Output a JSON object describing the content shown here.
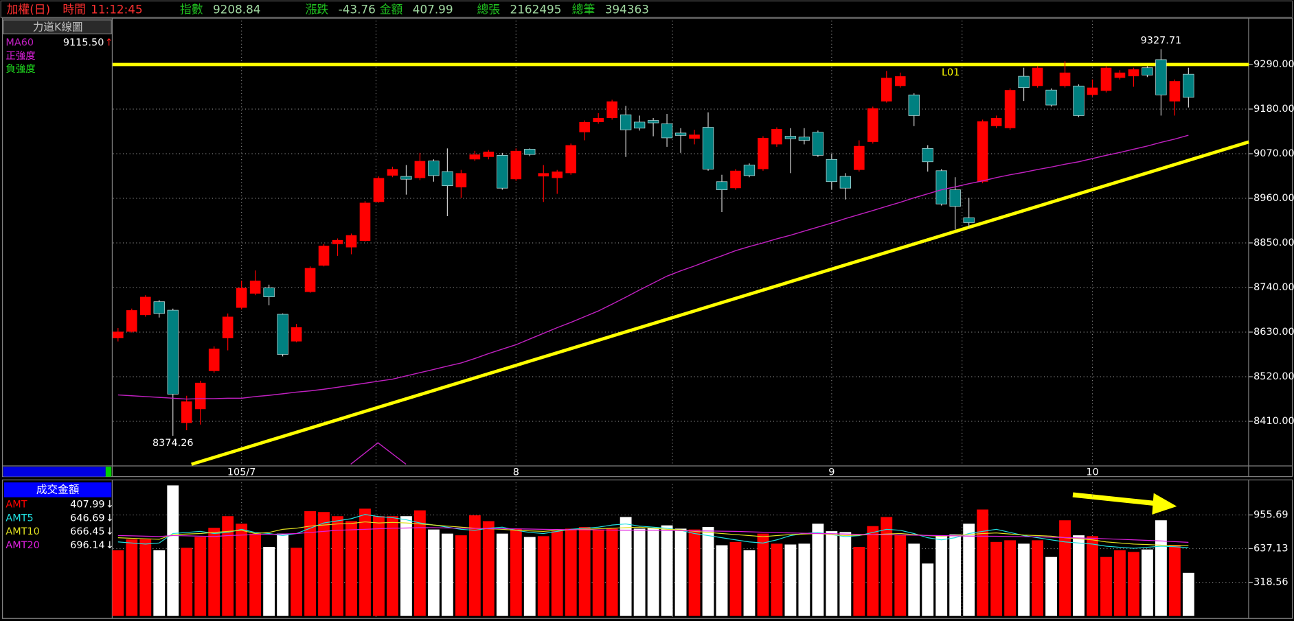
{
  "header": {
    "title": "加權(日)",
    "time_label": "時間",
    "time": "11:12:45",
    "fields": [
      {
        "label": "指數",
        "value": "9208.84"
      },
      {
        "label": "漲跌",
        "value": "-43.76"
      },
      {
        "label": "金額",
        "value": "407.99"
      },
      {
        "label": "總張",
        "value": "2162495"
      },
      {
        "label": "總筆",
        "value": "394363"
      }
    ]
  },
  "chart_data": [
    {
      "type": "candlestick",
      "title": "力道K線圖",
      "open": [
        8615,
        8631,
        8672,
        8705,
        8684,
        8406,
        8440,
        8534,
        8615,
        8690,
        8725,
        8739,
        8674,
        8607,
        8729,
        8794,
        8847,
        8839,
        8855,
        8951,
        9016,
        9014,
        9010,
        9052,
        9026,
        8987,
        9056,
        9062,
        9066,
        9007,
        9081,
        9014,
        9010,
        9022,
        9123,
        9148,
        9158,
        9166,
        9148,
        9152,
        9144,
        9121,
        9107,
        9135,
        9001,
        8985,
        9042,
        9032,
        9093,
        9113,
        9111,
        9123,
        9056,
        9014,
        9030,
        9099,
        9199,
        9237,
        9215,
        9083,
        9028,
        8981,
        8912,
        9001,
        9138,
        9133,
        9261,
        9237,
        9227,
        9237,
        9237,
        9215,
        9225,
        9257,
        9261,
        9282,
        9302,
        9199,
        9266
      ],
      "high": [
        8640,
        8688,
        8721,
        8709,
        8688,
        8473,
        8510,
        8595,
        8676,
        8757,
        8782,
        8747,
        8676,
        8650,
        8792,
        8847,
        8861,
        8873,
        8953,
        9014,
        9038,
        9042,
        9072,
        9056,
        9083,
        9030,
        9077,
        9079,
        9072,
        9083,
        9083,
        9042,
        9030,
        9095,
        9152,
        9170,
        9203,
        9188,
        9164,
        9158,
        9168,
        9133,
        9129,
        9172,
        9018,
        9032,
        9046,
        9113,
        9135,
        9133,
        9133,
        9127,
        9070,
        9022,
        9103,
        9186,
        9274,
        9270,
        9219,
        9091,
        9032,
        9012,
        8961,
        9154,
        9164,
        9231,
        9282,
        9286,
        9231,
        9298,
        9241,
        9253,
        9286,
        9276,
        9282,
        9286,
        9327.71,
        9253,
        9282
      ],
      "low": [
        8607,
        8629,
        8668,
        8666,
        8374.26,
        8388,
        8402,
        8530,
        8585,
        8686,
        8721,
        8696,
        8570,
        8605,
        8727,
        8792,
        8818,
        8822,
        8853,
        8949,
        9012,
        8969,
        9005,
        9001,
        8916,
        8961,
        9052,
        9056,
        8981,
        9003,
        9064,
        8951,
        8971,
        9018,
        9103,
        9144,
        9154,
        9062,
        9127,
        9113,
        9087,
        9072,
        9093,
        9028,
        8926,
        8981,
        9012,
        9028,
        9087,
        9022,
        9093,
        9062,
        8981,
        8957,
        9026,
        9095,
        9196,
        9233,
        9138,
        9026,
        8942,
        8883,
        8888,
        8997,
        9133,
        9129,
        9200,
        9233,
        9186,
        9233,
        9160,
        9211,
        9221,
        9253,
        9235,
        9259,
        9164,
        9164,
        9184
      ],
      "close": [
        8631,
        8684,
        8717,
        8676,
        8477,
        8459,
        8505,
        8589,
        8668,
        8739,
        8757,
        8717,
        8575,
        8642,
        8788,
        8843,
        8857,
        8869,
        8949,
        9010,
        9032,
        9007,
        9052,
        9016,
        8991,
        9022,
        9068,
        9075,
        8985,
        9077,
        9068,
        9022,
        9026,
        9091,
        9148,
        9158,
        9199,
        9129,
        9133,
        9146,
        9109,
        9115,
        9117,
        9032,
        8981,
        9028,
        9016,
        9109,
        9131,
        9107,
        9103,
        9066,
        9001,
        8985,
        9089,
        9182,
        9257,
        9261,
        9164,
        9050,
        8946,
        8940,
        8900,
        9150,
        9158,
        9227,
        9233,
        9282,
        9190,
        9270,
        9164,
        9233,
        9282,
        9270,
        9278,
        9264,
        9215,
        9249,
        9209
      ],
      "up_color": "#ff0000",
      "down_color": "#008080",
      "series": [
        {
          "name": "MA60",
          "color": "#c020c0",
          "legend_value": "9115.50",
          "trend": "↑",
          "values": [
            8475,
            8473,
            8471,
            8469,
            8467,
            8465,
            8466,
            8466,
            8467,
            8467,
            8471,
            8474,
            8478,
            8482,
            8485,
            8489,
            8494,
            8499,
            8504,
            8509,
            8514,
            8522,
            8530,
            8538,
            8546,
            8554,
            8565,
            8577,
            8588,
            8599,
            8613,
            8627,
            8641,
            8654,
            8668,
            8682,
            8699,
            8716,
            8734,
            8751,
            8768,
            8781,
            8793,
            8806,
            8818,
            8831,
            8841,
            8850,
            8860,
            8869,
            8879,
            8889,
            8899,
            8910,
            8920,
            8930,
            8940,
            8950,
            8961,
            8971,
            8981,
            8988,
            8996,
            9003,
            9011,
            9018,
            9024,
            9031,
            9037,
            9044,
            9050,
            9058,
            9066,
            9073,
            9081,
            9089,
            9098,
            9106,
            9115.5
          ]
        }
      ],
      "legend_extra": [
        {
          "name": "正強度",
          "color": "#e020e0"
        },
        {
          "name": "負強度",
          "color": "#20e020"
        }
      ],
      "ylim": [
        8300,
        9398
      ],
      "yticks": [
        {
          "value": 9290,
          "label": "9290.00"
        },
        {
          "value": 9180,
          "label": "9180.00"
        },
        {
          "value": 9070,
          "label": "9070.00"
        },
        {
          "value": 8960,
          "label": "8960.00"
        },
        {
          "value": 8850,
          "label": "8850.00"
        },
        {
          "value": 8740,
          "label": "8740.00"
        },
        {
          "value": 8630,
          "label": "8630.00"
        },
        {
          "value": 8520,
          "label": "8520.00"
        },
        {
          "value": 8410,
          "label": "8410.00"
        }
      ],
      "xticks": [
        {
          "value": 9,
          "label": "105/7"
        },
        {
          "value": 29,
          "label": "8"
        },
        {
          "value": 52,
          "label": "9"
        },
        {
          "value": 71,
          "label": "10"
        }
      ],
      "minor_xticks": [
        18.8,
        40.4,
        61.5
      ],
      "grid": true,
      "trendlines": [
        {
          "label": "L01",
          "color": "#ffff00",
          "x": [
            -0.4,
            82.4
          ],
          "values": [
            9290,
            9290
          ]
        },
        {
          "color": "#ffff00",
          "x": [
            5.35,
            82.4
          ],
          "values": [
            8304,
            9099
          ]
        }
      ],
      "annotations": [
        {
          "index": 4,
          "field": "low"
        },
        {
          "index": 76,
          "field": "high"
        }
      ]
    },
    {
      "type": "bar",
      "title": "成交金額",
      "name": "AMT",
      "color": "#ff0000",
      "trend": "↓",
      "up_color": "#ff0000",
      "down_color": "#ffffff",
      "values": [
        621,
        724,
        724,
        621,
        1235,
        645,
        747,
        834,
        944,
        873,
        779,
        653,
        779,
        645,
        991,
        983,
        944,
        897,
        1015,
        944,
        944,
        944,
        999,
        818,
        779,
        763,
        952,
        897,
        779,
        826,
        747,
        755,
        802,
        826,
        842,
        818,
        826,
        936,
        826,
        834,
        857,
        826,
        818,
        842,
        669,
        700,
        621,
        779,
        684,
        676,
        684,
        873,
        802,
        794,
        653,
        850,
        936,
        763,
        684,
        496,
        755,
        771,
        873,
        1007,
        700,
        716,
        684,
        716,
        558,
        905,
        763,
        755,
        558,
        621,
        606,
        629,
        905,
        669,
        407.99
      ],
      "series": [
        {
          "name": "AMT5",
          "color": "#20e0e0",
          "trend": "↓",
          "values": [
            700,
            690,
            680,
            690,
            780,
            790,
            800,
            780,
            790,
            820,
            790,
            780,
            760,
            780,
            830,
            880,
            900,
            920,
            960,
            940,
            930,
            910,
            880,
            860,
            840,
            820,
            810,
            830,
            840,
            810,
            790,
            780,
            800,
            820,
            830,
            840,
            860,
            870,
            850,
            840,
            830,
            810,
            780,
            760,
            740,
            720,
            700,
            690,
            720,
            760,
            780,
            790,
            770,
            750,
            760,
            790,
            820,
            810,
            780,
            740,
            720,
            740,
            780,
            800,
            820,
            790,
            760,
            740,
            720,
            700,
            690,
            680,
            660,
            650,
            640,
            650,
            660,
            655,
            646.69
          ]
        },
        {
          "name": "AMT10",
          "color": "#e0e020",
          "trend": "↓",
          "values": [
            740,
            735,
            730,
            725,
            770,
            775,
            780,
            790,
            800,
            810,
            780,
            790,
            820,
            830,
            850,
            860,
            870,
            875,
            890,
            880,
            885,
            880,
            870,
            860,
            850,
            840,
            830,
            825,
            820,
            810,
            805,
            800,
            810,
            815,
            820,
            825,
            830,
            835,
            840,
            830,
            820,
            815,
            800,
            790,
            780,
            770,
            760,
            750,
            760,
            770,
            775,
            780,
            770,
            760,
            765,
            770,
            775,
            780,
            770,
            760,
            755,
            760,
            770,
            780,
            785,
            775,
            765,
            760,
            755,
            740,
            730,
            720,
            700,
            690,
            680,
            675,
            670,
            668,
            666.45
          ]
        },
        {
          "name": "AMT20",
          "color": "#e020e0",
          "trend": "↓",
          "values": [
            760,
            758,
            755,
            752,
            760,
            758,
            755,
            752,
            760,
            765,
            770,
            772,
            775,
            780,
            790,
            800,
            810,
            815,
            820,
            825,
            830,
            832,
            835,
            835,
            833,
            830,
            828,
            826,
            825,
            824,
            822,
            820,
            818,
            816,
            815,
            814,
            813,
            812,
            812,
            810,
            808,
            806,
            805,
            804,
            802,
            800,
            796,
            792,
            788,
            785,
            782,
            780,
            778,
            775,
            772,
            770,
            768,
            766,
            764,
            762,
            760,
            758,
            756,
            755,
            754,
            752,
            750,
            748,
            745,
            742,
            738,
            735,
            730,
            725,
            720,
            715,
            710,
            703,
            696.14
          ]
        }
      ],
      "ylim": [
        0,
        1240
      ],
      "yticks": [
        318.56,
        637.13,
        955.69
      ]
    }
  ]
}
